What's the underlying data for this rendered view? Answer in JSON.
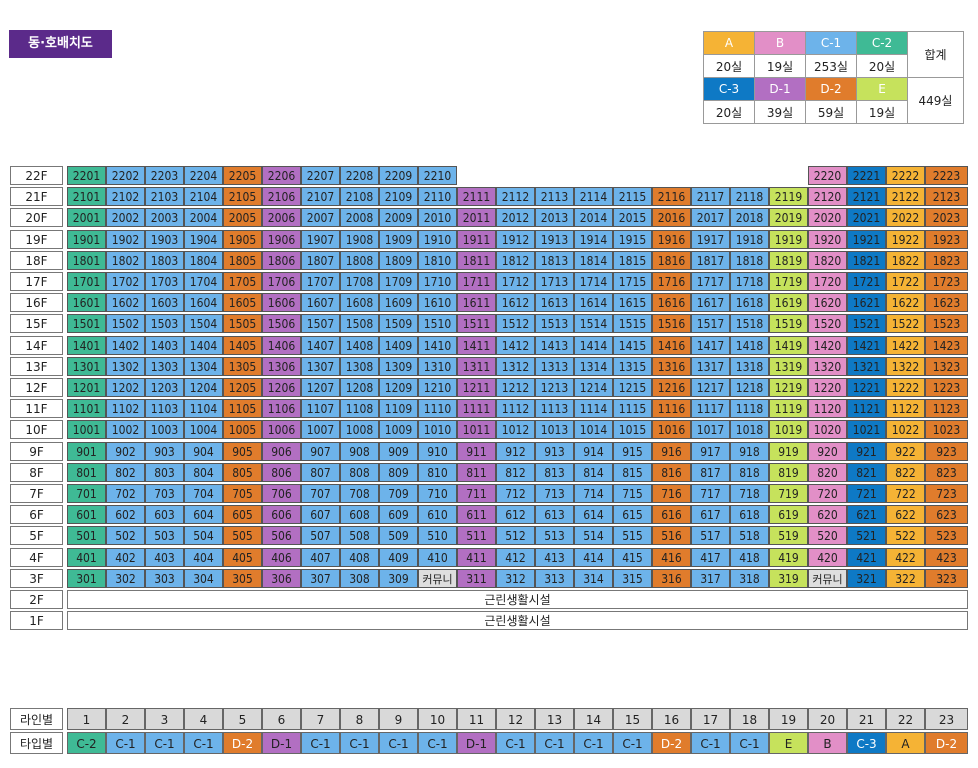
{
  "title": "동·호배치도",
  "legend": {
    "row1": [
      {
        "type": "A",
        "count": "20실",
        "color": "#f5b335"
      },
      {
        "type": "B",
        "count": "19실",
        "color": "#e28fc7"
      },
      {
        "type": "C-1",
        "count": "253실",
        "color": "#6db3ea"
      },
      {
        "type": "C-2",
        "count": "20실",
        "color": "#3fba95"
      }
    ],
    "row2": [
      {
        "type": "C-3",
        "count": "20실",
        "color": "#0e79c5"
      },
      {
        "type": "D-1",
        "count": "39실",
        "color": "#b26fc2"
      },
      {
        "type": "D-2",
        "count": "59실",
        "color": "#e07c2c"
      },
      {
        "type": "E",
        "count": "19실",
        "color": "#c6e25c"
      }
    ],
    "total_label": "합계",
    "total_value": "449실"
  },
  "colors": {
    "A": "#f5b335",
    "B": "#e28fc7",
    "C-1": "#6db3ea",
    "C-2": "#3fba95",
    "C-3": "#0e79c5",
    "D-1": "#b26fc2",
    "D-2": "#e07c2c",
    "E": "#c6e25c",
    "community": "#dedede",
    "label_bg": "#ffffff",
    "bottom_header": "#d9d9d9"
  },
  "floors": [
    "22F",
    "21F",
    "20F",
    "19F",
    "18F",
    "17F",
    "16F",
    "15F",
    "14F",
    "13F",
    "12F",
    "11F",
    "10F",
    "9F",
    "8F",
    "7F",
    "6F",
    "5F",
    "4F",
    "3F"
  ],
  "podium_floors": [
    {
      "floor": "2F",
      "use": "근린생활시설"
    },
    {
      "floor": "1F",
      "use": "근린생활시설"
    }
  ],
  "lines": [
    "1",
    "2",
    "3",
    "4",
    "5",
    "6",
    "7",
    "8",
    "9",
    "10",
    "11",
    "12",
    "13",
    "14",
    "15",
    "16",
    "17",
    "18",
    "19",
    "20",
    "21",
    "22",
    "23"
  ],
  "types": [
    "C-2",
    "C-1",
    "C-1",
    "C-1",
    "D-2",
    "D-1",
    "C-1",
    "C-1",
    "C-1",
    "C-1",
    "D-1",
    "C-1",
    "C-1",
    "C-1",
    "C-1",
    "D-2",
    "C-1",
    "C-1",
    "E",
    "B",
    "C-3",
    "A",
    "D-2"
  ],
  "floor22_lines": [
    "1",
    "2",
    "3",
    "4",
    "5",
    "6",
    "7",
    "8",
    "9",
    "10",
    "20",
    "21",
    "22",
    "23"
  ],
  "community_label": "커뮤니티",
  "community_units": {
    "3F": [
      "10",
      "20"
    ]
  },
  "line_row_label": "라인별",
  "type_row_label": "타입별"
}
